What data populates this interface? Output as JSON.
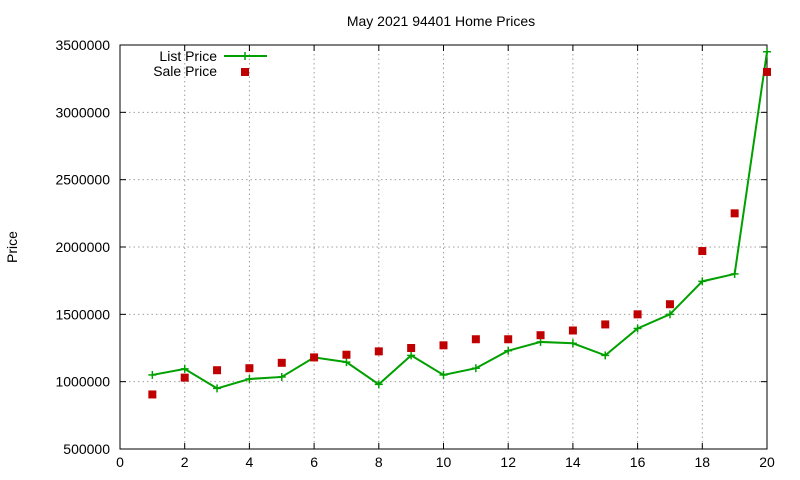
{
  "chart_data": {
    "type": "line",
    "title": "May 2021 94401 Home Prices",
    "xlabel": "",
    "ylabel": "Price",
    "xlim": [
      0,
      20
    ],
    "ylim": [
      500000,
      3500000
    ],
    "x_ticks": [
      "0",
      "2",
      "4",
      "6",
      "8",
      "10",
      "12",
      "14",
      "16",
      "18",
      "20"
    ],
    "y_ticks": [
      "500000",
      "1000000",
      "1500000",
      "2000000",
      "2500000",
      "3000000",
      "3500000"
    ],
    "grid": true,
    "legend_position": "top-left",
    "series": [
      {
        "name": "List Price",
        "style": "line+cross",
        "color": "#00a000",
        "x": [
          1,
          2,
          3,
          4,
          5,
          6,
          7,
          8,
          9,
          10,
          11,
          12,
          13,
          14,
          15,
          16,
          17,
          18,
          19,
          20
        ],
        "y": [
          1050000,
          1095000,
          950000,
          1020000,
          1035000,
          1180000,
          1145000,
          980000,
          1195000,
          1050000,
          1100000,
          1230000,
          1295000,
          1285000,
          1195000,
          1395000,
          1500000,
          1745000,
          1800000,
          3450000
        ]
      },
      {
        "name": "Sale Price",
        "style": "square",
        "color": "#c00000",
        "x": [
          1,
          2,
          3,
          4,
          5,
          6,
          7,
          8,
          9,
          10,
          11,
          12,
          13,
          14,
          15,
          16,
          17,
          18,
          19,
          20
        ],
        "y": [
          905000,
          1030000,
          1085000,
          1100000,
          1140000,
          1180000,
          1200000,
          1225000,
          1250000,
          1270000,
          1315000,
          1315000,
          1345000,
          1380000,
          1425000,
          1500000,
          1575000,
          1970000,
          2250000,
          3300000
        ]
      }
    ]
  }
}
